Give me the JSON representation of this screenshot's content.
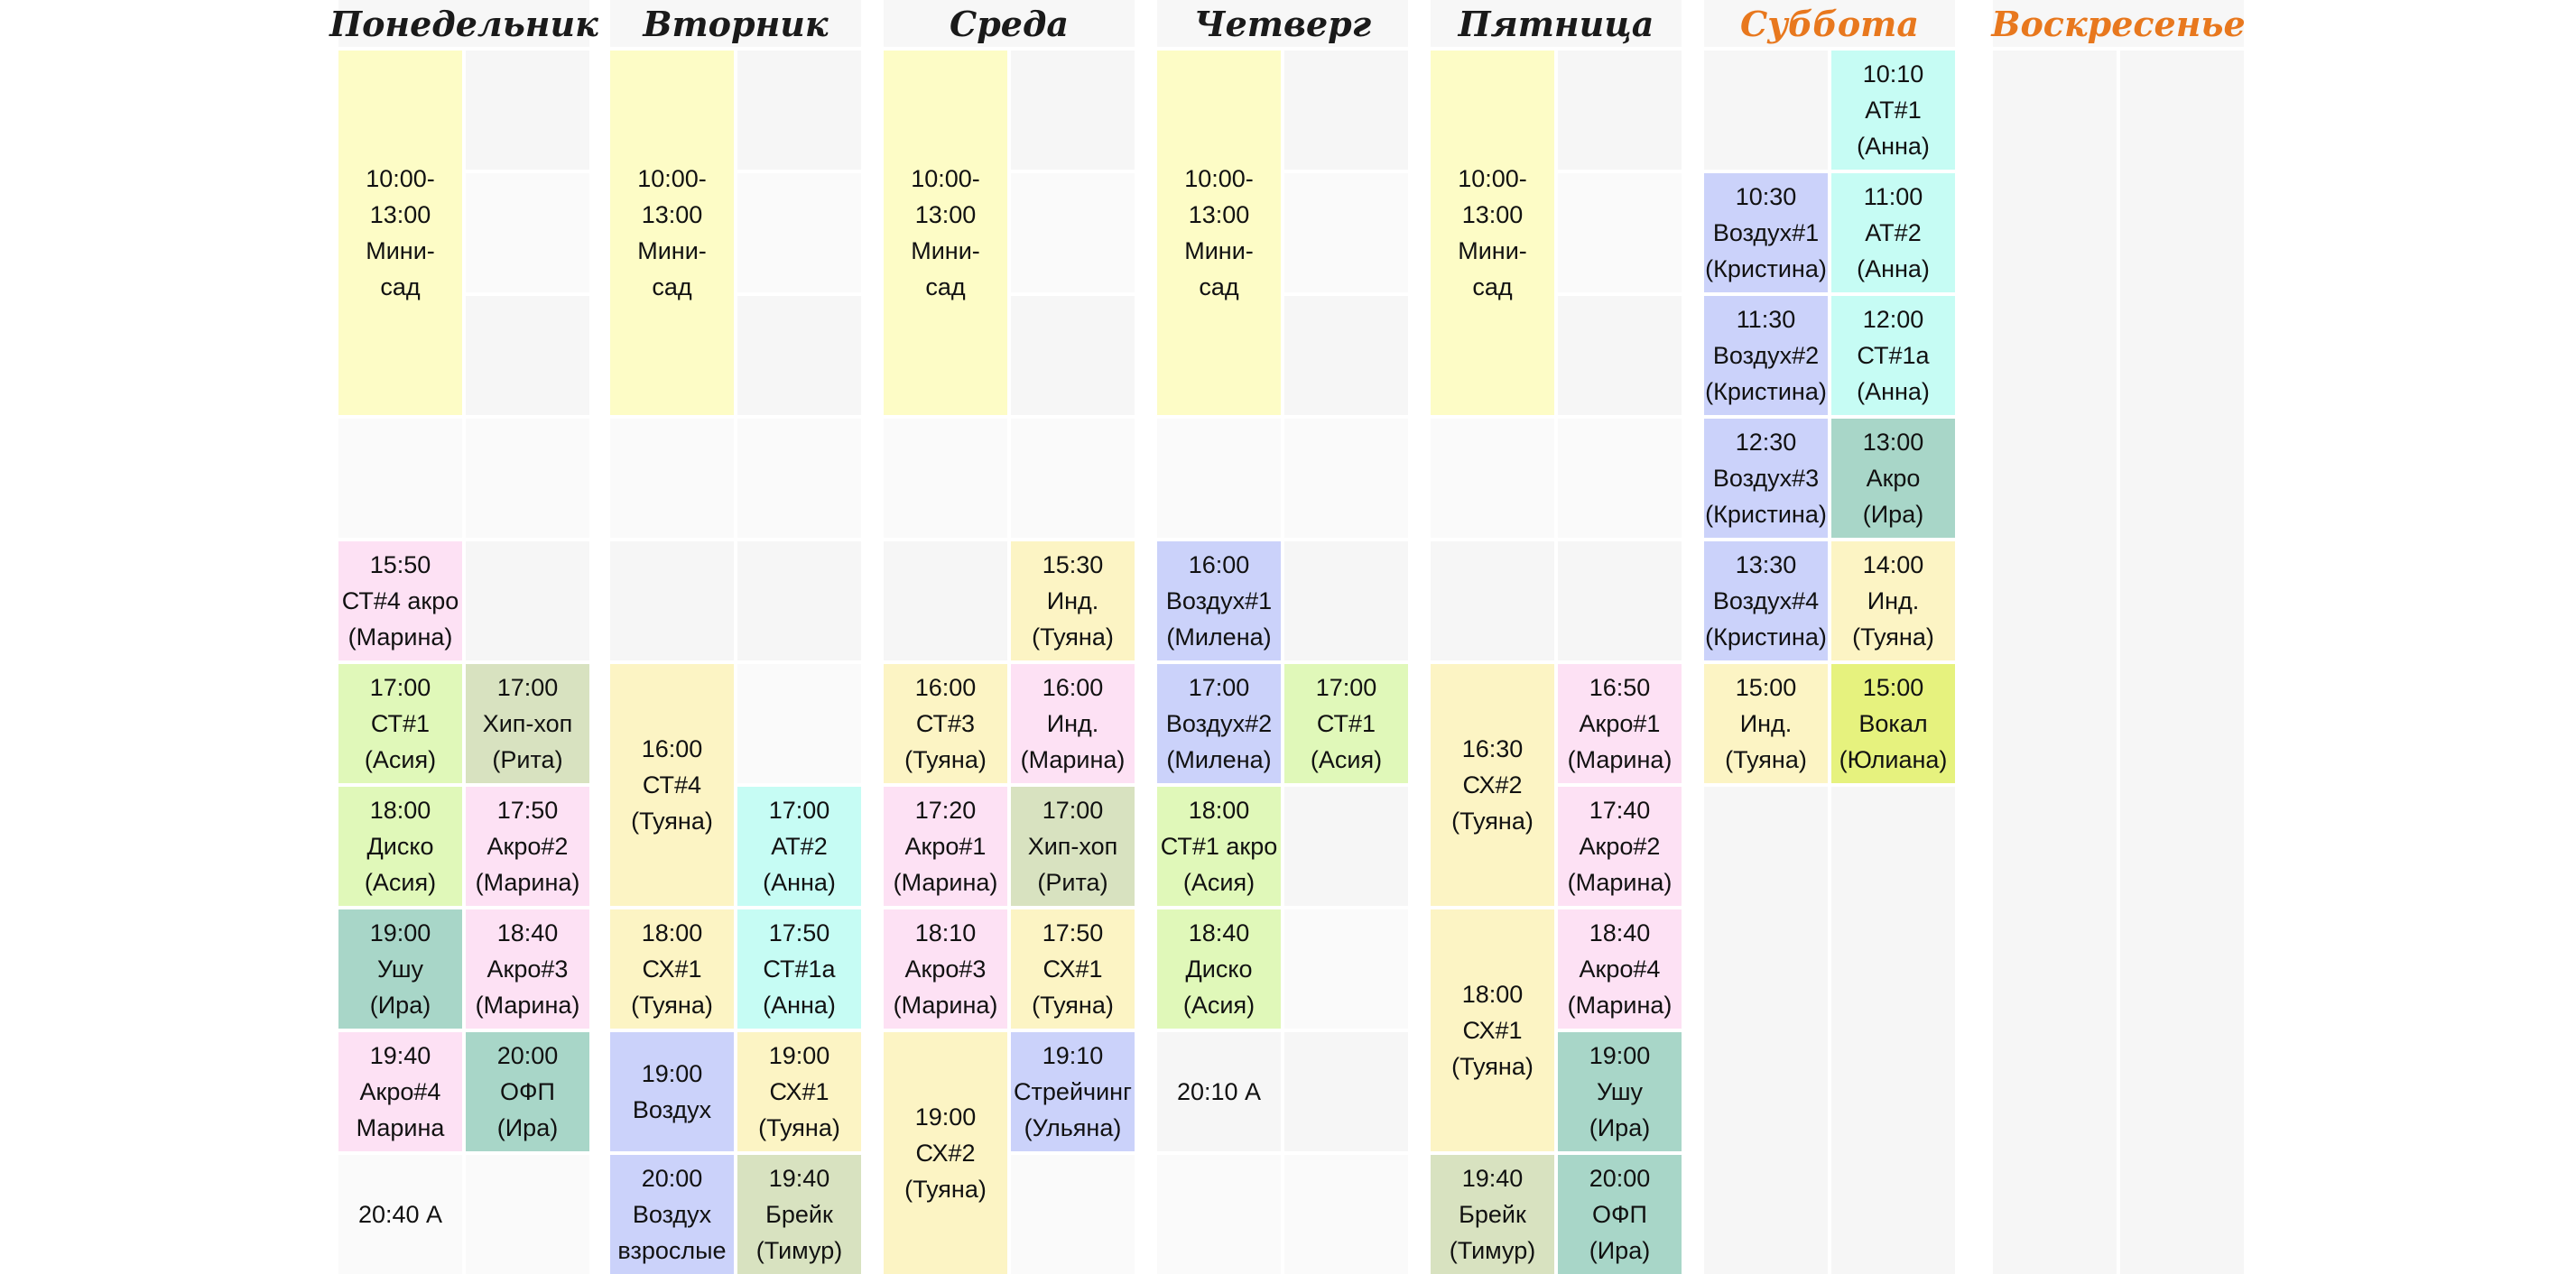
{
  "colors": {
    "weekday_title": "#1a1a1a",
    "weekend_title": "#e8781e",
    "mini_garden": "#fdfcc6",
    "pink": "#fde1f4",
    "light_green": "#e0f8b9",
    "teal": "#a8d6c8",
    "olive": "#d8e2c0",
    "lavender": "#cbd2fa",
    "cyan": "#c6fcf4",
    "cream": "#fcf4c4",
    "lime": "#e6f27e",
    "empty": "#f6f6f6"
  },
  "days": [
    {
      "name": "Понедельник",
      "weekend": false,
      "cols": [
        [
          {
            "span": 3,
            "color": "y",
            "text": "10:00-\n13:00\nМини-\nсад"
          },
          {
            "span": 1,
            "color": "e",
            "text": ""
          },
          {
            "span": 1,
            "color": "p",
            "text": "15:50\nСТ#4 акро\n(Марина)"
          },
          {
            "span": 1,
            "color": "g",
            "text": "17:00\nСТ#1\n(Асия)"
          },
          {
            "span": 1,
            "color": "g",
            "text": "18:00\nДиско\n(Асия)"
          },
          {
            "span": 1,
            "color": "t",
            "text": "19:00\nУшу\n(Ира)"
          },
          {
            "span": 1,
            "color": "p",
            "text": "19:40\nАкро#4\nМарина"
          },
          {
            "span": 1,
            "color": "e",
            "text": "20:40 А"
          }
        ],
        [
          {
            "span": 1,
            "color": "e",
            "text": ""
          },
          {
            "span": 1,
            "color": "e",
            "text": ""
          },
          {
            "span": 1,
            "color": "e",
            "text": ""
          },
          {
            "span": 1,
            "color": "e",
            "text": ""
          },
          {
            "span": 1,
            "color": "e",
            "text": ""
          },
          {
            "span": 1,
            "color": "o",
            "text": "17:00\nХип-хоп\n(Рита)"
          },
          {
            "span": 1,
            "color": "p",
            "text": "17:50\nАкро#2\n(Марина)"
          },
          {
            "span": 1,
            "color": "p",
            "text": "18:40\nАкро#3\n(Марина)"
          },
          {
            "span": 1,
            "color": "t",
            "text": "20:00\nОФП\n(Ира)"
          },
          {
            "span": 1,
            "color": "e",
            "text": ""
          }
        ]
      ]
    },
    {
      "name": "Вторник",
      "weekend": false,
      "cols": [
        [
          {
            "span": 3,
            "color": "y",
            "text": "10:00-\n13:00\nМини-\nсад"
          },
          {
            "span": 1,
            "color": "e",
            "text": ""
          },
          {
            "span": 1,
            "color": "e",
            "text": ""
          },
          {
            "span": 2,
            "color": "s",
            "text": "16:00\nСТ#4\n(Туяна)"
          },
          {
            "span": 1,
            "color": "s",
            "text": "18:00\nСХ#1\n(Туяна)"
          },
          {
            "span": 1,
            "color": "b",
            "text": "19:00\nВоздух"
          },
          {
            "span": 1,
            "color": "b",
            "text": "20:00\nВоздух\nвзрослые"
          }
        ],
        [
          {
            "span": 1,
            "color": "e",
            "text": ""
          },
          {
            "span": 1,
            "color": "e",
            "text": ""
          },
          {
            "span": 1,
            "color": "e",
            "text": ""
          },
          {
            "span": 1,
            "color": "e",
            "text": ""
          },
          {
            "span": 1,
            "color": "e",
            "text": ""
          },
          {
            "span": 1,
            "color": "e",
            "text": ""
          },
          {
            "span": 1,
            "color": "c",
            "text": "17:00\nАТ#2\n(Анна)"
          },
          {
            "span": 1,
            "color": "c",
            "text": "17:50\nСТ#1а\n(Анна)"
          },
          {
            "span": 1,
            "color": "s",
            "text": "19:00\nСХ#1\n(Туяна)"
          },
          {
            "span": 1,
            "color": "o",
            "text": "19:40\nБрейк\n(Тимур)"
          }
        ]
      ]
    },
    {
      "name": "Среда",
      "weekend": false,
      "cols": [
        [
          {
            "span": 3,
            "color": "y",
            "text": "10:00-\n13:00\nМини-\nсад"
          },
          {
            "span": 1,
            "color": "e",
            "text": ""
          },
          {
            "span": 1,
            "color": "e",
            "text": ""
          },
          {
            "span": 1,
            "color": "s",
            "text": "16:00\nСТ#3\n(Туяна)"
          },
          {
            "span": 1,
            "color": "p",
            "text": "17:20\nАкро#1\n(Марина)"
          },
          {
            "span": 1,
            "color": "p",
            "text": "18:10\nАкро#3\n(Марина)"
          },
          {
            "span": 2,
            "color": "s",
            "text": "19:00\nСХ#2\n(Туяна)"
          }
        ],
        [
          {
            "span": 1,
            "color": "e",
            "text": ""
          },
          {
            "span": 1,
            "color": "e",
            "text": ""
          },
          {
            "span": 1,
            "color": "e",
            "text": ""
          },
          {
            "span": 1,
            "color": "e",
            "text": ""
          },
          {
            "span": 1,
            "color": "s",
            "text": "15:30\nИнд.\n(Туяна)"
          },
          {
            "span": 1,
            "color": "p",
            "text": "16:00\nИнд.\n(Марина)"
          },
          {
            "span": 1,
            "color": "o",
            "text": "17:00\nХип-хоп\n(Рита)"
          },
          {
            "span": 1,
            "color": "s",
            "text": "17:50\nСХ#1\n(Туяна)"
          },
          {
            "span": 1,
            "color": "b",
            "text": "19:10\nСтрейчинг\n(Ульяна)"
          },
          {
            "span": 1,
            "color": "e",
            "text": ""
          }
        ]
      ]
    },
    {
      "name": "Четверг",
      "weekend": false,
      "cols": [
        [
          {
            "span": 3,
            "color": "y",
            "text": "10:00-\n13:00\nМини-\nсад"
          },
          {
            "span": 1,
            "color": "e",
            "text": ""
          },
          {
            "span": 1,
            "color": "b",
            "text": "16:00\nВоздух#1\n(Милена)"
          },
          {
            "span": 1,
            "color": "b",
            "text": "17:00\nВоздух#2\n(Милена)"
          },
          {
            "span": 1,
            "color": "g",
            "text": "18:00\nСТ#1 акро\n(Асия)"
          },
          {
            "span": 1,
            "color": "g",
            "text": "18:40\nДиско\n(Асия)"
          },
          {
            "span": 1,
            "color": "e",
            "text": "20:10 А"
          },
          {
            "span": 1,
            "color": "e",
            "text": ""
          }
        ],
        [
          {
            "span": 1,
            "color": "e",
            "text": ""
          },
          {
            "span": 1,
            "color": "e",
            "text": ""
          },
          {
            "span": 1,
            "color": "e",
            "text": ""
          },
          {
            "span": 1,
            "color": "e",
            "text": ""
          },
          {
            "span": 1,
            "color": "e",
            "text": ""
          },
          {
            "span": 1,
            "color": "g",
            "text": "17:00\nСТ#1\n(Асия)"
          },
          {
            "span": 1,
            "color": "e",
            "text": ""
          },
          {
            "span": 1,
            "color": "e",
            "text": ""
          },
          {
            "span": 1,
            "color": "e",
            "text": ""
          },
          {
            "span": 1,
            "color": "e",
            "text": ""
          }
        ]
      ]
    },
    {
      "name": "Пятница",
      "weekend": false,
      "cols": [
        [
          {
            "span": 3,
            "color": "y",
            "text": "10:00-\n13:00\nМини-\nсад"
          },
          {
            "span": 1,
            "color": "e",
            "text": ""
          },
          {
            "span": 1,
            "color": "e",
            "text": ""
          },
          {
            "span": 2,
            "color": "s",
            "text": "16:30\nСХ#2\n(Туяна)"
          },
          {
            "span": 2,
            "color": "s",
            "text": "18:00\nСХ#1\n(Туяна)"
          },
          {
            "span": 1,
            "color": "o",
            "text": "19:40\nБрейк\n(Тимур)"
          }
        ],
        [
          {
            "span": 1,
            "color": "e",
            "text": ""
          },
          {
            "span": 1,
            "color": "e",
            "text": ""
          },
          {
            "span": 1,
            "color": "e",
            "text": ""
          },
          {
            "span": 1,
            "color": "e",
            "text": ""
          },
          {
            "span": 1,
            "color": "e",
            "text": ""
          },
          {
            "span": 1,
            "color": "p",
            "text": "16:50\nАкро#1\n(Марина)"
          },
          {
            "span": 1,
            "color": "p",
            "text": "17:40\nАкро#2\n(Марина)"
          },
          {
            "span": 1,
            "color": "p",
            "text": "18:40\nАкро#4\n(Марина)"
          },
          {
            "span": 1,
            "color": "t",
            "text": "19:00\nУшу\n(Ира)"
          },
          {
            "span": 1,
            "color": "t",
            "text": "20:00\nОФП\n(Ира)"
          }
        ]
      ]
    },
    {
      "name": "Суббота",
      "weekend": true,
      "cols": [
        [
          {
            "span": 1,
            "color": "e",
            "text": ""
          },
          {
            "span": 1,
            "color": "b",
            "text": "10:30\nВоздух#1\n(Кристина)"
          },
          {
            "span": 1,
            "color": "b",
            "text": "11:30\nВоздух#2\n(Кристина)"
          },
          {
            "span": 1,
            "color": "b",
            "text": "12:30\nВоздух#3\n(Кристина)"
          },
          {
            "span": 1,
            "color": "b",
            "text": "13:30\nВоздух#4\n(Кристина)"
          },
          {
            "span": 1,
            "color": "s",
            "text": "15:00\nИнд.\n(Туяна)"
          },
          {
            "span": 4,
            "color": "e",
            "text": ""
          }
        ],
        [
          {
            "span": 1,
            "color": "c",
            "text": "10:10\nАТ#1\n(Анна)"
          },
          {
            "span": 1,
            "color": "c",
            "text": "11:00\nАТ#2\n(Анна)"
          },
          {
            "span": 1,
            "color": "c",
            "text": "12:00\nСТ#1а\n(Анна)"
          },
          {
            "span": 1,
            "color": "t",
            "text": "13:00\nАкро\n(Ира)"
          },
          {
            "span": 1,
            "color": "s",
            "text": "14:00\nИнд.\n(Туяна)"
          },
          {
            "span": 1,
            "color": "l",
            "text": "15:00\nВокал\n(Юлиана)"
          },
          {
            "span": 4,
            "color": "e",
            "text": ""
          }
        ]
      ]
    },
    {
      "name": "Воскресенье",
      "weekend": true,
      "cols": [
        [
          {
            "span": 10,
            "color": "e",
            "text": ""
          }
        ],
        [
          {
            "span": 10,
            "color": "e",
            "text": ""
          }
        ]
      ]
    }
  ]
}
